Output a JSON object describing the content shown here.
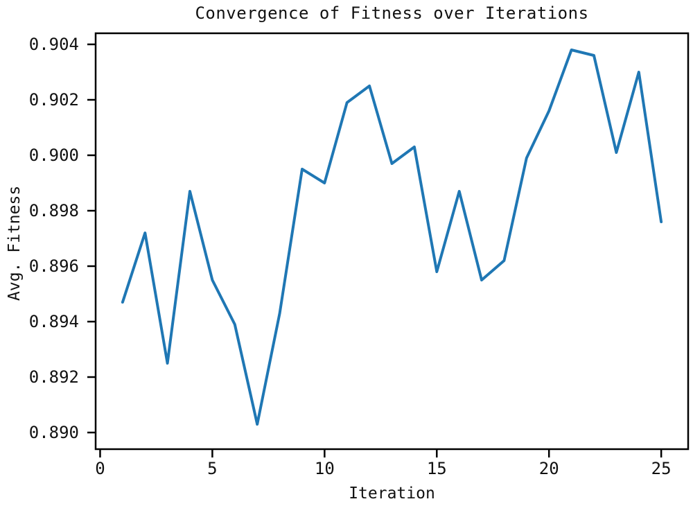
{
  "page": {
    "background_color": "#ffffff",
    "text_color": "#111111"
  },
  "chart_data": {
    "type": "line",
    "title": "Convergence of Fitness over Iterations",
    "xlabel": "Iteration",
    "ylabel": "Avg. Fitness",
    "x": [
      1,
      2,
      3,
      4,
      5,
      6,
      7,
      8,
      9,
      10,
      11,
      12,
      13,
      14,
      15,
      16,
      17,
      18,
      19,
      20,
      21,
      22,
      23,
      24,
      25
    ],
    "values": [
      0.8947,
      0.8972,
      0.8925,
      0.8987,
      0.8955,
      0.8939,
      0.8903,
      0.8943,
      0.8995,
      0.899,
      0.9019,
      0.9025,
      0.8997,
      0.9003,
      0.8958,
      0.8987,
      0.8955,
      0.8962,
      0.8999,
      0.9016,
      0.9038,
      0.9036,
      0.9001,
      0.903,
      0.8976
    ],
    "xlim": [
      -0.2,
      26.2
    ],
    "ylim": [
      0.8894,
      0.9044
    ],
    "xticks": [
      0,
      5,
      10,
      15,
      20,
      25
    ],
    "xtick_labels": [
      "0",
      "5",
      "10",
      "15",
      "20",
      "25"
    ],
    "yticks": [
      0.89,
      0.892,
      0.894,
      0.896,
      0.898,
      0.9,
      0.902,
      0.904
    ],
    "ytick_labels": [
      "0.890",
      "0.892",
      "0.894",
      "0.896",
      "0.898",
      "0.900",
      "0.902",
      "0.904"
    ],
    "grid": false,
    "legend": "none",
    "line_color": "#1f77b4",
    "axis_color": "#000000",
    "line_width": 4
  }
}
